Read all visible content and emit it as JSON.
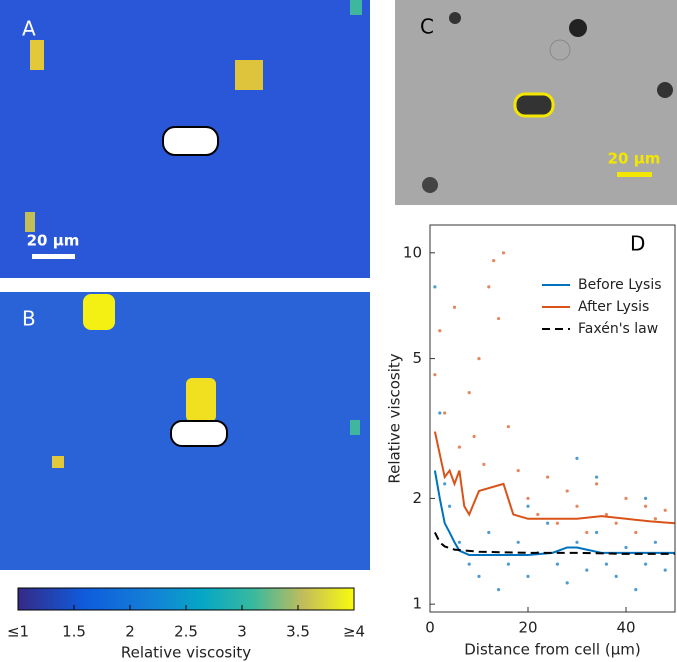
{
  "panels": {
    "a": {
      "label": "A",
      "scale_bar": "20 µm"
    },
    "b": {
      "label": "B"
    },
    "c": {
      "label": "C",
      "scale_bar": "20 µm"
    }
  },
  "colorbar": {
    "label": "Relative viscosity",
    "clim": [
      1,
      4
    ],
    "ticks": [
      {
        "value": 1,
        "label": "≤1"
      },
      1.5,
      2,
      2.5,
      3,
      3.5,
      {
        "value": 4,
        "label": "≥4"
      }
    ]
  },
  "chart_data": {
    "type": "line",
    "label": "D",
    "xlabel": "Distance from cell (µm)",
    "ylabel": "Relative viscosity",
    "xlim": [
      0,
      50
    ],
    "ylim": [
      0.95,
      12
    ],
    "log_y": true,
    "xticks": [
      0,
      20,
      40
    ],
    "yticks": [
      1,
      2,
      5,
      10
    ],
    "legend": "upper right",
    "series": [
      {
        "name": "Before Lysis",
        "color": "#0072bd",
        "dash": false,
        "x": [
          1,
          2,
          3,
          4,
          5,
          6,
          8,
          10,
          15,
          20,
          25,
          28,
          30,
          35,
          40,
          45,
          50
        ],
        "values": [
          2.4,
          2.0,
          1.7,
          1.6,
          1.5,
          1.42,
          1.38,
          1.38,
          1.38,
          1.38,
          1.4,
          1.45,
          1.45,
          1.4,
          1.4,
          1.4,
          1.4
        ],
        "points_x": [
          1,
          2,
          3,
          4,
          6,
          8,
          10,
          12,
          14,
          16,
          18,
          20,
          22,
          24,
          26,
          28,
          30,
          32,
          34,
          36,
          38,
          40,
          42,
          44,
          46,
          48,
          30,
          34,
          20,
          44
        ],
        "points_y": [
          8,
          3.5,
          2.2,
          1.9,
          1.5,
          1.3,
          1.2,
          1.6,
          1.1,
          1.3,
          1.5,
          1.2,
          1.4,
          1.7,
          1.3,
          1.15,
          1.5,
          1.25,
          1.6,
          1.3,
          1.2,
          1.45,
          1.1,
          1.3,
          1.5,
          1.25,
          2.6,
          2.3,
          1.9,
          2.0
        ]
      },
      {
        "name": "After Lysis",
        "color": "#d95319",
        "dash": false,
        "x": [
          1,
          3,
          4,
          5,
          6,
          7,
          8,
          10,
          15,
          17,
          20,
          25,
          30,
          35,
          40,
          45,
          50
        ],
        "values": [
          3.1,
          2.3,
          2.4,
          2.2,
          2.4,
          1.9,
          1.8,
          2.1,
          2.2,
          1.8,
          1.75,
          1.75,
          1.75,
          1.78,
          1.75,
          1.72,
          1.7
        ],
        "points_x": [
          1,
          2,
          3,
          5,
          6,
          8,
          9,
          10,
          11,
          13,
          15,
          16,
          18,
          20,
          22,
          24,
          26,
          28,
          30,
          32,
          34,
          36,
          38,
          40,
          42,
          44,
          46,
          48,
          12,
          14
        ],
        "points_y": [
          4.5,
          6,
          3.5,
          7,
          2.8,
          4,
          3,
          5,
          2.5,
          9.5,
          10,
          3.2,
          2.4,
          2.0,
          1.8,
          2.3,
          1.7,
          2.1,
          1.9,
          1.6,
          2.2,
          1.8,
          1.7,
          2.0,
          1.6,
          1.9,
          1.75,
          1.85,
          8,
          6.5
        ]
      },
      {
        "name": "Faxén's law",
        "color": "#000000",
        "dash": true,
        "x": [
          1,
          2,
          3,
          5,
          10,
          20,
          30,
          40,
          50
        ],
        "values": [
          1.6,
          1.5,
          1.46,
          1.43,
          1.41,
          1.4,
          1.4,
          1.39,
          1.39
        ]
      }
    ]
  }
}
